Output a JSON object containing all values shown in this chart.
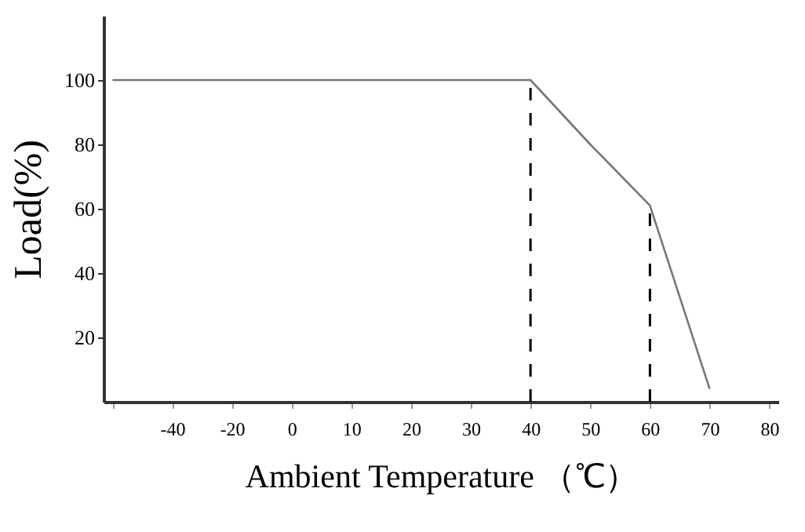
{
  "chart_data": {
    "type": "line",
    "xlabel": "Ambient Temperature （℃）",
    "ylabel": "Load(%)",
    "categories": [
      null,
      "-40",
      "-20",
      "0",
      "10",
      "20",
      "30",
      "40",
      "50",
      "60",
      "70",
      "80"
    ],
    "series": [
      {
        "color": "#777777",
        "values": [
          100,
          100,
          100,
          100,
          100,
          100,
          100,
          100,
          80,
          61,
          4,
          null
        ]
      }
    ],
    "ylim": [
      0,
      120
    ],
    "yticks": [
      20,
      40,
      60,
      80,
      100
    ],
    "grid": false,
    "marker": "none",
    "line_style": "solid",
    "ref_lines": [
      {
        "axis": "x",
        "value": "40",
        "line_style": "dashed",
        "color": "#000000"
      },
      {
        "axis": "x",
        "value": "60",
        "line_style": "dashed",
        "color": "#000000"
      }
    ]
  }
}
